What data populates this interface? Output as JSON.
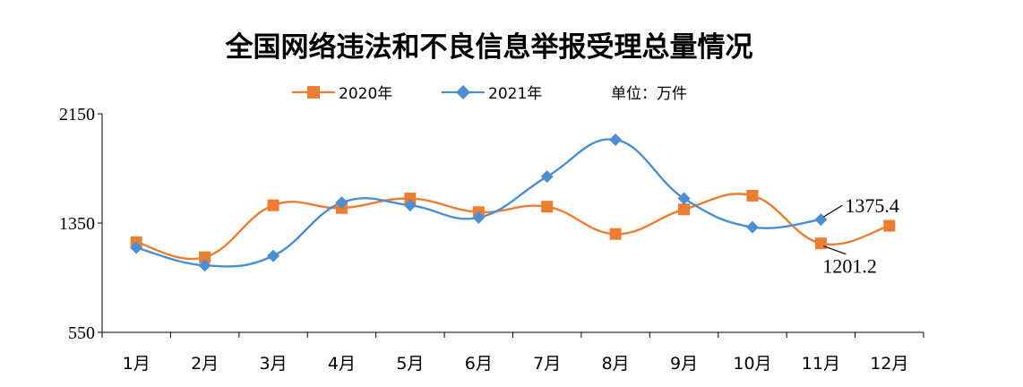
{
  "chart_data": {
    "type": "line",
    "title": "全国网络违法和不良信息举报受理总量情况",
    "unit_label": "单位：万件",
    "categories": [
      "1月",
      "2月",
      "3月",
      "4月",
      "5月",
      "6月",
      "7月",
      "8月",
      "9月",
      "10月",
      "11月",
      "12月"
    ],
    "y_ticks": [
      "2150",
      "1350",
      "550"
    ],
    "ylim": [
      550,
      2150
    ],
    "grid": false,
    "legend_position": "top-center",
    "series": [
      {
        "name": "2020年",
        "color": "#ED7D31",
        "marker": "square",
        "values": [
          1210,
          1100,
          1480,
          1460,
          1530,
          1430,
          1470,
          1270,
          1450,
          1550,
          1201.2,
          1330
        ]
      },
      {
        "name": "2021年",
        "color": "#4A8FD4",
        "marker": "diamond",
        "values": [
          1170,
          1040,
          1110,
          1500,
          1480,
          1390,
          1690,
          1960,
          1530,
          1320,
          1375.4,
          null
        ]
      }
    ],
    "annotations": [
      {
        "text": "1375.4",
        "series": 1,
        "index": 10
      },
      {
        "text": "1201.2",
        "series": 0,
        "index": 10
      }
    ]
  }
}
